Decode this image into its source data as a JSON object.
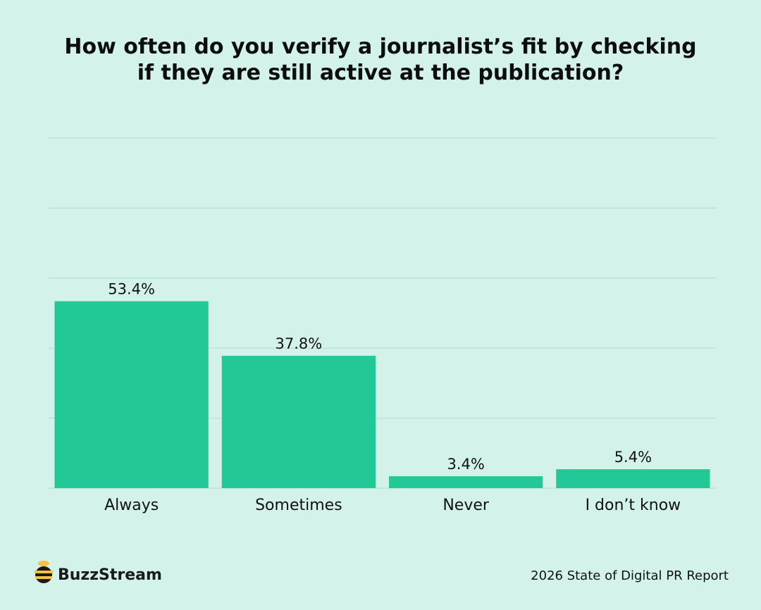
{
  "chart_data": {
    "type": "bar",
    "title": "How often do you verify a journalist’s fit by checking if they are still active at the publication?",
    "categories": [
      "Always",
      "Sometimes",
      "Never",
      "I don’t know"
    ],
    "values": [
      53.4,
      37.8,
      3.4,
      5.4
    ],
    "value_labels": [
      "53.4%",
      "37.8%",
      "3.4%",
      "5.4%"
    ],
    "color": "#22c997",
    "ylim": [
      0,
      100
    ],
    "yticks": [
      0,
      20,
      40,
      60,
      80,
      100
    ],
    "grid": true,
    "brand": "BuzzStream",
    "source": "2026 State of Digital PR Report"
  }
}
